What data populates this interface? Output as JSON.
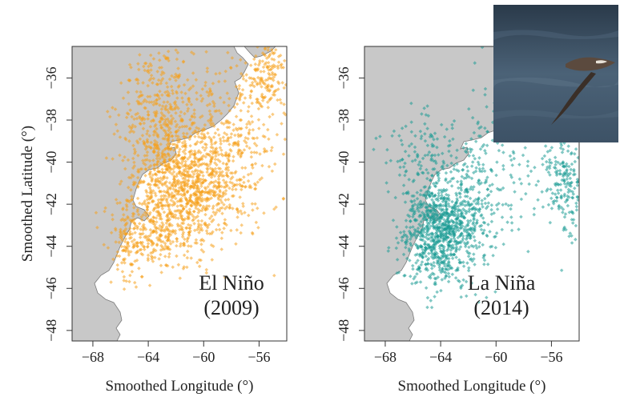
{
  "figure": {
    "ylabel": "Smoothed Latitude (°)",
    "xlabel": "Smoothed Longitude (°)",
    "inset_photo": "shearwater-bird-photo"
  },
  "chart_data": [
    {
      "type": "scatter",
      "panel_label_line1": "El Niño",
      "panel_label_line2": "(2009)",
      "color": "#f5a11c",
      "xlim": [
        -69.5,
        -54
      ],
      "ylim": [
        -48.5,
        -34.5
      ],
      "xticks": [
        -68,
        -64,
        -60,
        -56
      ],
      "xtick_labels": [
        "−68",
        "−64",
        "−60",
        "−56"
      ],
      "yticks": [
        -36,
        -38,
        -40,
        -42,
        -44,
        -46,
        -48
      ],
      "ytick_labels": [
        "−36",
        "−38",
        "−40",
        "−42",
        "−44",
        "−46",
        "−48"
      ],
      "clusters": [
        {
          "cx": -61.5,
          "cy": -41.0,
          "sx": 1.8,
          "sy": 1.3,
          "n": 900
        },
        {
          "cx": -63.0,
          "cy": -37.8,
          "sx": 1.5,
          "sy": 1.6,
          "n": 400
        },
        {
          "cx": -58.0,
          "cy": -39.5,
          "sx": 1.6,
          "sy": 2.0,
          "n": 350
        },
        {
          "cx": -55.5,
          "cy": -36.0,
          "sx": 0.9,
          "sy": 1.0,
          "n": 180
        },
        {
          "cx": -63.5,
          "cy": -43.5,
          "sx": 1.6,
          "sy": 0.9,
          "n": 280
        },
        {
          "cx": -65.3,
          "cy": -44.0,
          "sx": 0.5,
          "sy": 0.8,
          "n": 60
        }
      ]
    },
    {
      "type": "scatter",
      "panel_label_line1": "La Niña",
      "panel_label_line2": "(2014)",
      "color": "#1a9a94",
      "xlim": [
        -69.5,
        -54
      ],
      "ylim": [
        -48.5,
        -34.5
      ],
      "xticks": [
        -68,
        -64,
        -60,
        -56
      ],
      "xtick_labels": [
        "−68",
        "−64",
        "−60",
        "−56"
      ],
      "yticks": [
        -36,
        -38,
        -40,
        -42,
        -44,
        -46,
        -48
      ],
      "ytick_labels": [
        "−36",
        "−38",
        "−40",
        "−42",
        "−44",
        "−46",
        "−48"
      ],
      "clusters": [
        {
          "cx": -64.0,
          "cy": -43.3,
          "sx": 1.4,
          "sy": 1.2,
          "n": 900
        },
        {
          "cx": -62.0,
          "cy": -41.5,
          "sx": 2.0,
          "sy": 1.4,
          "n": 250
        },
        {
          "cx": -55.0,
          "cy": -41.0,
          "sx": 0.9,
          "sy": 1.3,
          "n": 200
        },
        {
          "cx": -65.5,
          "cy": -39.5,
          "sx": 1.5,
          "sy": 1.0,
          "n": 90
        },
        {
          "cx": -60.0,
          "cy": -38.5,
          "sx": 2.0,
          "sy": 1.5,
          "n": 60
        }
      ]
    }
  ]
}
